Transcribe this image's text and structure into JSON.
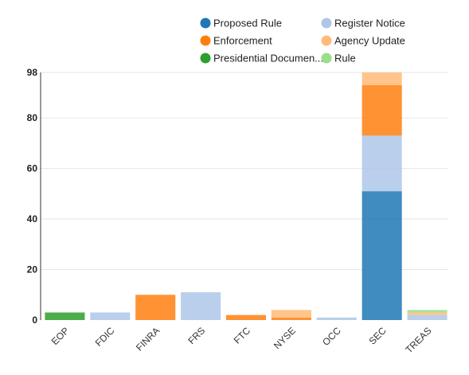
{
  "chart_data": {
    "type": "bar",
    "stacked": true,
    "categories": [
      "EOP",
      "FDIC",
      "FINRA",
      "FRS",
      "FTC",
      "NYSE",
      "OCC",
      "SEC",
      "TREAS"
    ],
    "series": [
      {
        "name": "Proposed Rule",
        "color": "#1f77b4",
        "values": [
          0,
          0,
          0,
          0,
          0,
          0,
          0,
          51,
          0
        ]
      },
      {
        "name": "Register Notice",
        "color": "#aec7e8",
        "values": [
          0,
          3,
          0,
          11,
          0,
          0,
          1,
          22,
          2
        ]
      },
      {
        "name": "Enforcement",
        "color": "#ff7f0e",
        "values": [
          0,
          0,
          10,
          0,
          2,
          1,
          0,
          20,
          0
        ]
      },
      {
        "name": "Agency Update",
        "color": "#ffbb78",
        "values": [
          0,
          0,
          0,
          0,
          0,
          3,
          0,
          5,
          1
        ]
      },
      {
        "name": "Presidential Documen...",
        "color": "#2ca02c",
        "values": [
          3,
          0,
          0,
          0,
          0,
          0,
          0,
          0,
          0
        ]
      },
      {
        "name": "Rule",
        "color": "#98df8a",
        "values": [
          0,
          0,
          0,
          0,
          0,
          0,
          0,
          0,
          1
        ]
      }
    ],
    "ylim": [
      0,
      98
    ],
    "yticks": [
      0,
      20,
      40,
      60,
      80,
      98
    ],
    "grid": true,
    "legend_position": "top",
    "title": "",
    "xlabel": "",
    "ylabel": ""
  }
}
